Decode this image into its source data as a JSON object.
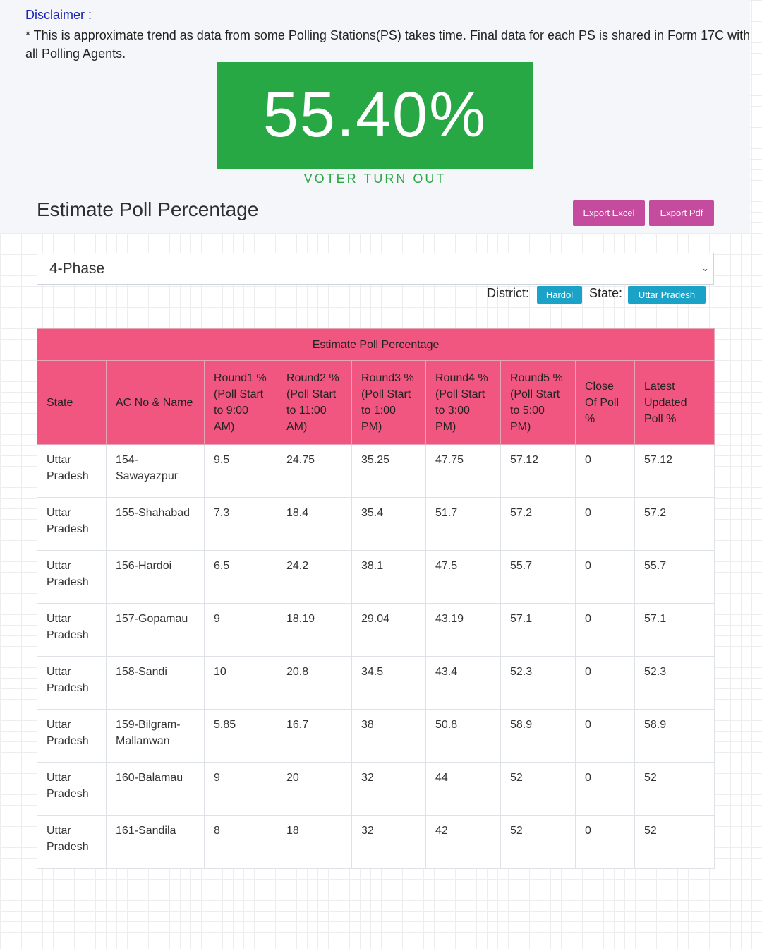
{
  "disclaimer": {
    "title": "Disclaimer :",
    "text": "* This is approximate trend as data from some Polling Stations(PS) takes time. Final data for each PS is shared in Form 17C with all Polling Agents."
  },
  "turnout": {
    "value": "55.40%",
    "label": "VOTER TURN OUT",
    "color": "#28a745"
  },
  "page_title": "Estimate Poll Percentage",
  "buttons": {
    "export_excel": "Export Excel",
    "export_pdf": "Export Pdf",
    "color": "#c44b9d"
  },
  "phase_select": {
    "value": "4-Phase",
    "icon": "chevron-down-icon"
  },
  "filters": {
    "district_label": "District:",
    "district_value": "Hardol",
    "state_label": "State:",
    "state_value": "Uttar Pradesh",
    "badge_color": "#1aa2c7"
  },
  "table": {
    "caption": "Estimate Poll Percentage",
    "header_color": "#f0567f",
    "headers": [
      "State",
      "AC No & Name",
      "Round1 % (Poll Start to 9:00 AM)",
      "Round2 % (Poll Start to 11:00 AM)",
      "Round3 % (Poll Start to 1:00 PM)",
      "Round4 % (Poll Start to 3:00 PM)",
      "Round5 % (Poll Start to 5:00 PM)",
      "Close Of Poll %",
      "Latest Updated Poll %"
    ],
    "rows": [
      [
        "Uttar Pradesh",
        "154-Sawayazpur",
        "9.5",
        "24.75",
        "35.25",
        "47.75",
        "57.12",
        "0",
        "57.12"
      ],
      [
        "Uttar Pradesh",
        "155-Shahabad",
        "7.3",
        "18.4",
        "35.4",
        "51.7",
        "57.2",
        "0",
        "57.2"
      ],
      [
        "Uttar Pradesh",
        "156-Hardoi",
        "6.5",
        "24.2",
        "38.1",
        "47.5",
        "55.7",
        "0",
        "55.7"
      ],
      [
        "Uttar Pradesh",
        "157-Gopamau",
        "9",
        "18.19",
        "29.04",
        "43.19",
        "57.1",
        "0",
        "57.1"
      ],
      [
        "Uttar Pradesh",
        "158-Sandi",
        "10",
        "20.8",
        "34.5",
        "43.4",
        "52.3",
        "0",
        "52.3"
      ],
      [
        "Uttar Pradesh",
        "159-Bilgram-Mallanwan",
        "5.85",
        "16.7",
        "38",
        "50.8",
        "58.9",
        "0",
        "58.9"
      ],
      [
        "Uttar Pradesh",
        "160-Balamau",
        "9",
        "20",
        "32",
        "44",
        "52",
        "0",
        "52"
      ],
      [
        "Uttar Pradesh",
        "161-Sandila",
        "8",
        "18",
        "32",
        "42",
        "52",
        "0",
        "52"
      ]
    ]
  }
}
